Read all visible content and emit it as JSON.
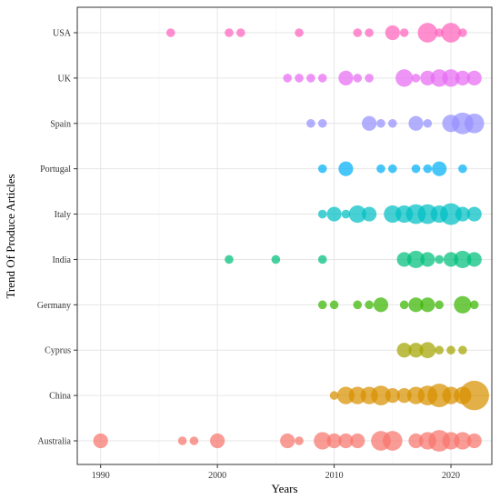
{
  "chart_data": {
    "type": "scatter",
    "title": "",
    "xlabel": "Years",
    "ylabel": "Trend Of Produce Articles",
    "xlim": [
      1988,
      2023.5
    ],
    "x_ticks": [
      1990,
      2000,
      2010,
      2020
    ],
    "categories": [
      "Australia",
      "China",
      "Cyprus",
      "Germany",
      "India",
      "Italy",
      "Portugal",
      "Spain",
      "UK",
      "USA"
    ],
    "grid": true,
    "legend": "none",
    "series": [
      {
        "category": "Australia",
        "color": "#F8766D",
        "points": [
          {
            "year": 1990,
            "count": 4
          },
          {
            "year": 1997,
            "count": 1
          },
          {
            "year": 1998,
            "count": 1
          },
          {
            "year": 2000,
            "count": 4
          },
          {
            "year": 2006,
            "count": 4
          },
          {
            "year": 2007,
            "count": 1
          },
          {
            "year": 2009,
            "count": 6
          },
          {
            "year": 2010,
            "count": 4
          },
          {
            "year": 2011,
            "count": 4
          },
          {
            "year": 2012,
            "count": 4
          },
          {
            "year": 2014,
            "count": 8
          },
          {
            "year": 2015,
            "count": 8
          },
          {
            "year": 2017,
            "count": 4
          },
          {
            "year": 2018,
            "count": 6
          },
          {
            "year": 2019,
            "count": 10
          },
          {
            "year": 2020,
            "count": 6
          },
          {
            "year": 2021,
            "count": 6
          },
          {
            "year": 2022,
            "count": 4
          }
        ]
      },
      {
        "category": "China",
        "color": "#D89000",
        "points": [
          {
            "year": 2010,
            "count": 1
          },
          {
            "year": 2011,
            "count": 6
          },
          {
            "year": 2012,
            "count": 6
          },
          {
            "year": 2013,
            "count": 6
          },
          {
            "year": 2014,
            "count": 8
          },
          {
            "year": 2015,
            "count": 4
          },
          {
            "year": 2016,
            "count": 4
          },
          {
            "year": 2017,
            "count": 6
          },
          {
            "year": 2018,
            "count": 8
          },
          {
            "year": 2019,
            "count": 12
          },
          {
            "year": 2020,
            "count": 6
          },
          {
            "year": 2021,
            "count": 6
          },
          {
            "year": 2022,
            "count": 20
          }
        ]
      },
      {
        "category": "Cyprus",
        "color": "#A3A500",
        "points": [
          {
            "year": 2016,
            "count": 4
          },
          {
            "year": 2017,
            "count": 4
          },
          {
            "year": 2018,
            "count": 5
          },
          {
            "year": 2019,
            "count": 1
          },
          {
            "year": 2020,
            "count": 1
          },
          {
            "year": 2021,
            "count": 1
          }
        ]
      },
      {
        "category": "Germany",
        "color": "#39B600",
        "points": [
          {
            "year": 2009,
            "count": 1
          },
          {
            "year": 2010,
            "count": 1
          },
          {
            "year": 2012,
            "count": 1
          },
          {
            "year": 2013,
            "count": 1
          },
          {
            "year": 2014,
            "count": 4
          },
          {
            "year": 2016,
            "count": 1
          },
          {
            "year": 2017,
            "count": 4
          },
          {
            "year": 2018,
            "count": 4
          },
          {
            "year": 2019,
            "count": 1
          },
          {
            "year": 2021,
            "count": 6
          },
          {
            "year": 2022,
            "count": 1
          }
        ]
      },
      {
        "category": "India",
        "color": "#00BF7D",
        "points": [
          {
            "year": 2001,
            "count": 1
          },
          {
            "year": 2005,
            "count": 1
          },
          {
            "year": 2009,
            "count": 1
          },
          {
            "year": 2016,
            "count": 4
          },
          {
            "year": 2017,
            "count": 6
          },
          {
            "year": 2018,
            "count": 4
          },
          {
            "year": 2019,
            "count": 1
          },
          {
            "year": 2020,
            "count": 4
          },
          {
            "year": 2021,
            "count": 6
          },
          {
            "year": 2022,
            "count": 4
          }
        ]
      },
      {
        "category": "Italy",
        "color": "#00BFC4",
        "points": [
          {
            "year": 2009,
            "count": 1
          },
          {
            "year": 2010,
            "count": 4
          },
          {
            "year": 2011,
            "count": 1
          },
          {
            "year": 2012,
            "count": 6
          },
          {
            "year": 2013,
            "count": 4
          },
          {
            "year": 2015,
            "count": 6
          },
          {
            "year": 2016,
            "count": 6
          },
          {
            "year": 2017,
            "count": 8
          },
          {
            "year": 2018,
            "count": 8
          },
          {
            "year": 2019,
            "count": 6
          },
          {
            "year": 2020,
            "count": 10
          },
          {
            "year": 2021,
            "count": 4
          },
          {
            "year": 2022,
            "count": 4
          }
        ]
      },
      {
        "category": "Portugal",
        "color": "#00B0F6",
        "points": [
          {
            "year": 2009,
            "count": 1
          },
          {
            "year": 2011,
            "count": 4
          },
          {
            "year": 2014,
            "count": 1
          },
          {
            "year": 2015,
            "count": 1
          },
          {
            "year": 2017,
            "count": 1
          },
          {
            "year": 2018,
            "count": 1
          },
          {
            "year": 2019,
            "count": 4
          },
          {
            "year": 2021,
            "count": 1
          }
        ]
      },
      {
        "category": "Spain",
        "color": "#9590FF",
        "points": [
          {
            "year": 2008,
            "count": 1
          },
          {
            "year": 2009,
            "count": 1
          },
          {
            "year": 2013,
            "count": 4
          },
          {
            "year": 2014,
            "count": 1
          },
          {
            "year": 2015,
            "count": 1
          },
          {
            "year": 2017,
            "count": 4
          },
          {
            "year": 2018,
            "count": 1
          },
          {
            "year": 2020,
            "count": 6
          },
          {
            "year": 2021,
            "count": 10
          },
          {
            "year": 2022,
            "count": 8
          }
        ]
      },
      {
        "category": "UK",
        "color": "#E76BF3",
        "points": [
          {
            "year": 2006,
            "count": 1
          },
          {
            "year": 2007,
            "count": 1
          },
          {
            "year": 2008,
            "count": 1
          },
          {
            "year": 2009,
            "count": 1
          },
          {
            "year": 2011,
            "count": 4
          },
          {
            "year": 2012,
            "count": 1
          },
          {
            "year": 2013,
            "count": 1
          },
          {
            "year": 2016,
            "count": 6
          },
          {
            "year": 2017,
            "count": 1
          },
          {
            "year": 2018,
            "count": 4
          },
          {
            "year": 2019,
            "count": 6
          },
          {
            "year": 2020,
            "count": 6
          },
          {
            "year": 2021,
            "count": 4
          },
          {
            "year": 2022,
            "count": 4
          }
        ]
      },
      {
        "category": "USA",
        "color": "#FF62BC",
        "points": [
          {
            "year": 1996,
            "count": 1
          },
          {
            "year": 2001,
            "count": 1
          },
          {
            "year": 2002,
            "count": 1
          },
          {
            "year": 2007,
            "count": 1
          },
          {
            "year": 2012,
            "count": 1
          },
          {
            "year": 2013,
            "count": 1
          },
          {
            "year": 2015,
            "count": 4
          },
          {
            "year": 2016,
            "count": 1
          },
          {
            "year": 2018,
            "count": 8
          },
          {
            "year": 2019,
            "count": 1
          },
          {
            "year": 2020,
            "count": 8
          },
          {
            "year": 2021,
            "count": 1
          }
        ]
      }
    ]
  }
}
